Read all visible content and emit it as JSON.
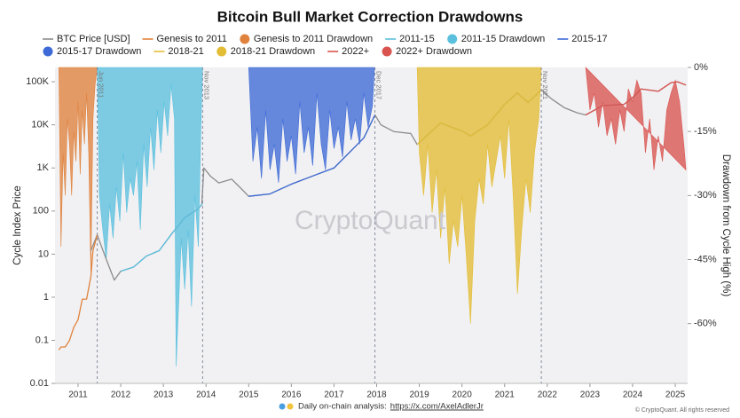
{
  "chart_data": {
    "type": "line",
    "title": "Bitcoin Bull Market Correction Drawdowns",
    "y_label": "Cycle Index Price",
    "y2_label": "Drawdown from Cycle High (%)",
    "watermark": "CryptoQuant",
    "footer": "Daily on-chain analysis:",
    "footer_link": "https://x.com/AxelAdlerJr",
    "copyright": "© CryptoQuant. All rights reserved",
    "xlim": [
      2010.46,
      2025.29
    ],
    "xticks": [
      2011,
      2012,
      2013,
      2014,
      2015,
      2016,
      2017,
      2018,
      2019,
      2020,
      2021,
      2022,
      2023,
      2024,
      2025
    ],
    "yscale": "log",
    "ylim": [
      0.01,
      215000
    ],
    "yticks": [
      0.01,
      0.1,
      1,
      10,
      100,
      {
        "value": 1000,
        "label": "1K"
      },
      {
        "value": 10000,
        "label": "10K"
      },
      {
        "value": 100000,
        "label": "100K"
      }
    ],
    "y2lim": [
      -74,
      0
    ],
    "y2ticks": [
      {
        "value": 0,
        "label": "0%"
      },
      {
        "value": -15,
        "label": "-15%"
      },
      {
        "value": -30,
        "label": "-30%"
      },
      {
        "value": -45,
        "label": "-45%"
      },
      {
        "value": -60,
        "label": "-60%"
      }
    ],
    "grid": false,
    "annotations": [
      {
        "x": 2011.45,
        "label": "Jun 2011"
      },
      {
        "x": 2013.92,
        "label": "Nov 2013"
      },
      {
        "x": 2017.96,
        "label": "Dec 2017"
      },
      {
        "x": 2021.86,
        "label": "Nov 2021"
      }
    ],
    "series": [
      {
        "name": "BTC Price [USD]",
        "type": "line",
        "color": "#8c8c8c",
        "x": [
          2011.3,
          2011.45,
          2011.55,
          2011.7,
          2011.85,
          2012.0,
          2012.3,
          2012.6,
          2012.9,
          2013.2,
          2013.5,
          2013.8,
          2013.9,
          2013.95,
          2014.1,
          2014.3,
          2014.6,
          2014.8,
          2015.0,
          2015.5,
          2016.0,
          2016.5,
          2017.0,
          2017.4,
          2017.7,
          2017.96,
          2018.1,
          2018.4,
          2018.8,
          2018.95,
          2019.5,
          2020.0,
          2020.2,
          2020.6,
          2021.0,
          2021.3,
          2021.55,
          2021.86,
          2022.1,
          2022.4,
          2022.7,
          2022.9,
          2023.3,
          2023.8,
          2024.0,
          2024.2,
          2024.6,
          2024.9,
          2025.05,
          2025.25
        ],
        "values": [
          12,
          28,
          15,
          6,
          2.5,
          4,
          5,
          9,
          12,
          30,
          70,
          110,
          140,
          1000,
          650,
          450,
          550,
          350,
          220,
          250,
          420,
          650,
          1000,
          2500,
          5000,
          17000,
          10000,
          7000,
          6300,
          3500,
          11000,
          7200,
          5500,
          10000,
          30000,
          55000,
          33000,
          65000,
          40000,
          25000,
          19000,
          17000,
          28000,
          30000,
          43000,
          68000,
          60000,
          95000,
          100000,
          84000
        ]
      },
      {
        "name": "Genesis to 2011",
        "type": "line",
        "color": "#e0823c",
        "x": [
          2010.55,
          2010.6,
          2010.7,
          2010.8,
          2010.9,
          2011.0,
          2011.1,
          2011.2,
          2011.3,
          2011.35,
          2011.45
        ],
        "values": [
          0.06,
          0.07,
          0.07,
          0.1,
          0.2,
          0.3,
          0.9,
          0.9,
          3,
          12,
          28
        ]
      },
      {
        "name": "Genesis to 2011 Drawdown",
        "type": "area",
        "axis": "y2",
        "color": "#e0823c",
        "x": [
          2010.55,
          2010.6,
          2010.65,
          2010.7,
          2010.75,
          2010.8,
          2010.85,
          2010.9,
          2010.95,
          2011.0,
          2011.05,
          2011.1,
          2011.15,
          2011.2,
          2011.25,
          2011.3,
          2011.35,
          2011.4,
          2011.45
        ],
        "values": [
          0,
          -42,
          -20,
          -30,
          -12,
          -18,
          -30,
          -15,
          -22,
          -8,
          -25,
          -10,
          -18,
          -6,
          -20,
          -48,
          -12,
          -4,
          0
        ]
      },
      {
        "name": "2011-15",
        "type": "line",
        "color": "#5bc0de",
        "x": [
          2012.0,
          2012.3,
          2012.6,
          2012.9,
          2013.2,
          2013.5,
          2013.8,
          2013.92
        ],
        "values": [
          4,
          5,
          9,
          12,
          30,
          70,
          110,
          150
        ]
      },
      {
        "name": "2011-15 Drawdown",
        "type": "area",
        "axis": "y2",
        "color": "#5bc0de",
        "x": [
          2011.45,
          2011.5,
          2011.58,
          2011.66,
          2011.74,
          2011.82,
          2011.9,
          2011.98,
          2012.06,
          2012.14,
          2012.22,
          2012.3,
          2012.38,
          2012.46,
          2012.54,
          2012.62,
          2012.7,
          2012.78,
          2012.86,
          2012.94,
          2013.02,
          2013.1,
          2013.18,
          2013.26,
          2013.3,
          2013.34,
          2013.42,
          2013.5,
          2013.58,
          2013.66,
          2013.74,
          2013.82,
          2013.88,
          2013.92
        ],
        "values": [
          0,
          -30,
          -38,
          -45,
          -32,
          -40,
          -28,
          -36,
          -20,
          -34,
          -26,
          -30,
          -22,
          -38,
          -18,
          -28,
          -14,
          -24,
          -10,
          -20,
          -8,
          -16,
          -4,
          -12,
          -70,
          -60,
          -40,
          -52,
          -38,
          -56,
          -30,
          -42,
          -14,
          0
        ]
      },
      {
        "name": "2015-17",
        "type": "line",
        "color": "#3d6ad6",
        "x": [
          2015.0,
          2015.5,
          2016.0,
          2016.5,
          2017.0,
          2017.4,
          2017.7,
          2017.96
        ],
        "values": [
          220,
          250,
          420,
          650,
          1000,
          2500,
          5000,
          17000
        ]
      },
      {
        "name": "2015-17 Drawdown",
        "type": "area",
        "axis": "y2",
        "color": "#3d6ad6",
        "x": [
          2015.0,
          2015.1,
          2015.2,
          2015.3,
          2015.4,
          2015.5,
          2015.6,
          2015.7,
          2015.8,
          2015.9,
          2016.0,
          2016.1,
          2016.2,
          2016.3,
          2016.4,
          2016.5,
          2016.6,
          2016.7,
          2016.8,
          2016.9,
          2017.0,
          2017.1,
          2017.2,
          2017.3,
          2017.4,
          2017.5,
          2017.6,
          2017.7,
          2017.8,
          2017.9,
          2017.95
        ],
        "values": [
          0,
          -22,
          -14,
          -26,
          -10,
          -24,
          -18,
          -27,
          -12,
          -22,
          -16,
          -25,
          -8,
          -20,
          -14,
          -23,
          -6,
          -18,
          -24,
          -10,
          -19,
          -14,
          -21,
          -8,
          -17,
          -12,
          -18,
          -6,
          -14,
          -9,
          0
        ]
      },
      {
        "name": "2018-21",
        "type": "line",
        "color": "#e3bd35",
        "x": [
          2018.95,
          2019.5,
          2020.0,
          2020.2,
          2020.6,
          2021.0,
          2021.3,
          2021.55,
          2021.86
        ],
        "values": [
          3500,
          11000,
          7200,
          5500,
          10000,
          30000,
          55000,
          33000,
          65000
        ]
      },
      {
        "name": "2018-21 Drawdown",
        "type": "area",
        "axis": "y2",
        "color": "#e3bd35",
        "x": [
          2018.95,
          2019.0,
          2019.1,
          2019.2,
          2019.3,
          2019.4,
          2019.5,
          2019.6,
          2019.7,
          2019.8,
          2019.9,
          2020.0,
          2020.1,
          2020.2,
          2020.3,
          2020.4,
          2020.5,
          2020.6,
          2020.7,
          2020.8,
          2020.9,
          2021.0,
          2021.1,
          2021.2,
          2021.3,
          2021.4,
          2021.5,
          2021.6,
          2021.7,
          2021.8,
          2021.86
        ],
        "values": [
          0,
          -20,
          -30,
          -18,
          -34,
          -24,
          -40,
          -28,
          -46,
          -36,
          -42,
          -30,
          -44,
          -60,
          -36,
          -26,
          -32,
          -18,
          -28,
          -22,
          -16,
          -26,
          -12,
          -30,
          -53,
          -38,
          -26,
          -34,
          -20,
          -12,
          0
        ]
      },
      {
        "name": "2022+",
        "type": "line",
        "color": "#d9534f",
        "x": [
          2022.9,
          2023.3,
          2023.8,
          2024.0,
          2024.2,
          2024.6,
          2024.9,
          2025.05,
          2025.25
        ],
        "values": [
          17000,
          28000,
          30000,
          43000,
          68000,
          60000,
          95000,
          100000,
          84000
        ]
      },
      {
        "name": "2022+ Drawdown",
        "type": "area",
        "axis": "y2",
        "color": "#d9534f",
        "x": [
          2022.9,
          2023.0,
          2023.1,
          2023.2,
          2023.3,
          2023.4,
          2023.5,
          2023.6,
          2023.7,
          2023.8,
          2023.9,
          2024.0,
          2024.1,
          2024.2,
          2024.3,
          2024.4,
          2024.5,
          2024.6,
          2024.7,
          2024.8,
          2024.9,
          2025.0,
          2025.1,
          2025.2,
          2025.25
        ],
        "values": [
          0,
          -10,
          -6,
          -14,
          -8,
          -16,
          -12,
          -18,
          -10,
          -15,
          -5,
          -8,
          -3,
          -6,
          -20,
          -12,
          -24,
          -16,
          -22,
          -10,
          -6,
          -3,
          -8,
          -18,
          -24
        ]
      }
    ]
  }
}
